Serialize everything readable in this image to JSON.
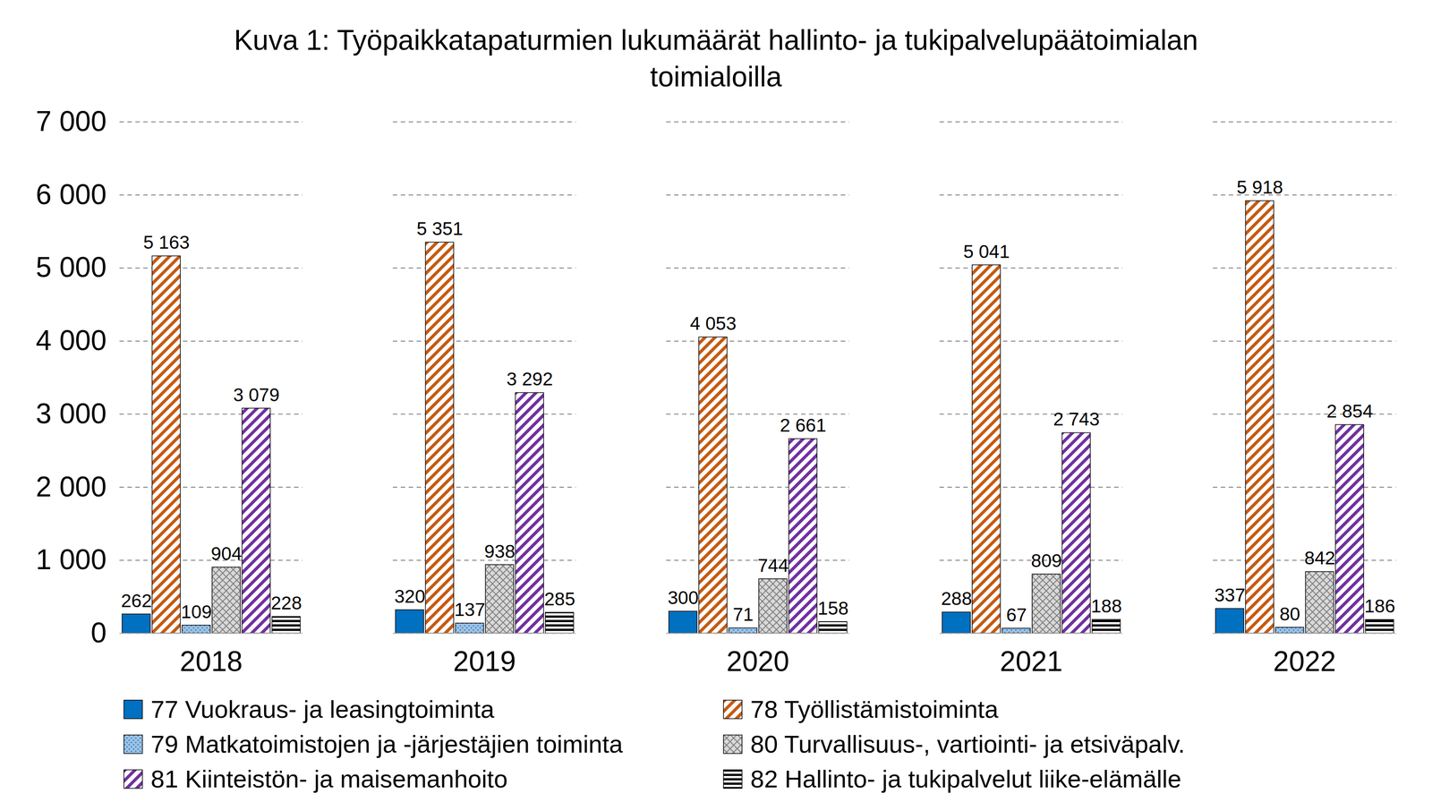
{
  "chart_data": {
    "type": "bar",
    "title": "Kuva 1: Työpaikkatapaturmien lukumäärät hallinto- ja tukipalvelupäätoimialan toimialoilla",
    "categories": [
      "2018",
      "2019",
      "2020",
      "2021",
      "2022"
    ],
    "series": [
      {
        "name": "77 Vuokraus- ja leasingtoiminta",
        "color": "#0070c0",
        "values": [
          262,
          320,
          300,
          288,
          337
        ]
      },
      {
        "name": "78 Työllistämistoiminta",
        "color": "#c55a11",
        "values": [
          5163,
          5351,
          4053,
          5041,
          5918
        ],
        "value_labels": [
          "5 163",
          "5 351",
          "4 053",
          "5 041",
          "5 918"
        ]
      },
      {
        "name": "79 Matkatoimistojen ja -järjestäjien toiminta",
        "color": "#9dc3e6",
        "values": [
          109,
          137,
          71,
          67,
          80
        ]
      },
      {
        "name": "80 Turvallisuus-, vartiointi- ja etsiväpalv.",
        "color": "#7f7f7f",
        "values": [
          904,
          938,
          744,
          809,
          842
        ]
      },
      {
        "name": "81 Kiinteistön- ja maisemanhoito",
        "color": "#7030a0",
        "values": [
          3079,
          3292,
          2661,
          2743,
          2854
        ],
        "value_labels": [
          "3 079",
          "3 292",
          "2 661",
          "2 743",
          "2 854"
        ]
      },
      {
        "name": "82 Hallinto- ja tukipalvelut liike-elämälle",
        "color": "#000000",
        "values": [
          228,
          285,
          158,
          188,
          186
        ]
      }
    ],
    "ylim": [
      0,
      7000
    ],
    "yticks": [
      0,
      {
        "value": 1000,
        "label": "1 000"
      },
      {
        "value": 2000,
        "label": "2 000"
      },
      {
        "value": 3000,
        "label": "3 000"
      },
      {
        "value": 4000,
        "label": "4 000"
      },
      {
        "value": 5000,
        "label": "5 000"
      },
      {
        "value": 6000,
        "label": "6 000"
      },
      {
        "value": 7000,
        "label": "7 000"
      }
    ],
    "grid": true,
    "data_labels": true,
    "legend": "bottom"
  }
}
